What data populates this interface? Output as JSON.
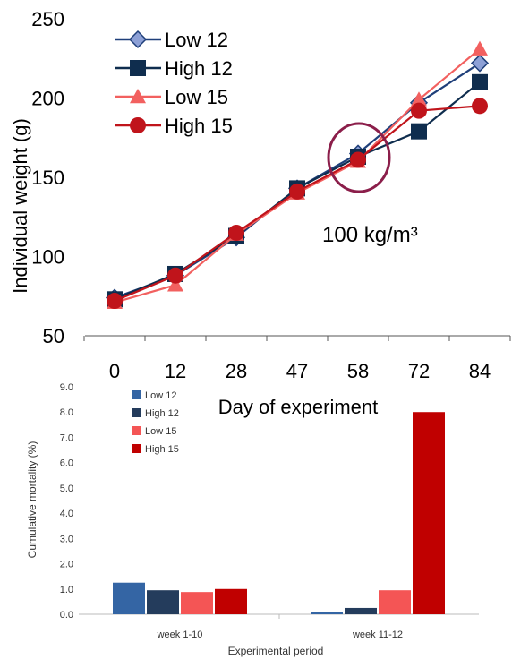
{
  "chart_data": [
    {
      "type": "line",
      "title": "",
      "xlabel": "Day of experiment",
      "ylabel": "Individual weight (g)",
      "ylim": [
        50,
        250
      ],
      "y_ticks": [
        "50",
        "100",
        "150",
        "200",
        "250"
      ],
      "categories": [
        "0",
        "12",
        "28",
        "47",
        "58",
        "72",
        "84"
      ],
      "annotation": "100 kg/m³",
      "legend_position": "top-left",
      "series": [
        {
          "name": "Low 12",
          "marker": "diamond",
          "color": "#1F3F7A",
          "fill": "#8DA0D6",
          "values": [
            74,
            88,
            112,
            143,
            165,
            197,
            222
          ]
        },
        {
          "name": "High 12",
          "marker": "square",
          "color": "#0F2D4E",
          "fill": "#0F2D4E",
          "values": [
            73,
            89,
            113,
            143,
            163,
            179,
            210
          ]
        },
        {
          "name": "Low 15",
          "marker": "triangle",
          "color": "#F2605F",
          "fill": "#F2605F",
          "values": [
            71,
            82,
            114,
            140,
            160,
            199,
            231
          ]
        },
        {
          "name": "High 15",
          "marker": "circle",
          "color": "#C0141B",
          "fill": "#C0141B",
          "values": [
            72,
            88,
            115,
            141,
            161,
            192,
            195
          ]
        }
      ]
    },
    {
      "type": "bar",
      "title": "",
      "xlabel": "Experimental period",
      "ylabel": "Cumulative mortality (%)",
      "ylim": [
        0,
        9
      ],
      "y_ticks": [
        "0.0",
        "1.0",
        "2.0",
        "3.0",
        "4.0",
        "5.0",
        "6.0",
        "7.0",
        "8.0",
        "9.0"
      ],
      "categories": [
        "week 1-10",
        "week 11-12"
      ],
      "legend_position": "top-left",
      "series": [
        {
          "name": "Low 12",
          "color": "#3465A4",
          "values": [
            1.25,
            0.1
          ]
        },
        {
          "name": "High 12",
          "color": "#243C5C",
          "values": [
            0.95,
            0.25
          ]
        },
        {
          "name": "Low 15",
          "color": "#F45555",
          "values": [
            0.88,
            0.95
          ]
        },
        {
          "name": "High 15",
          "color": "#C00000",
          "values": [
            1.0,
            8.0
          ]
        }
      ]
    }
  ]
}
